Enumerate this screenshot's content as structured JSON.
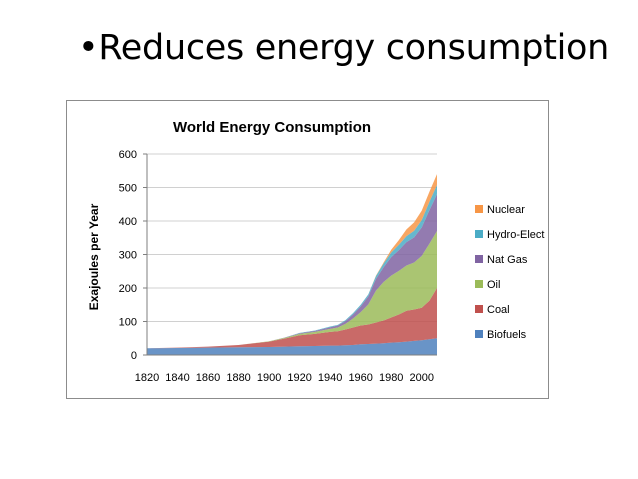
{
  "slide": {
    "title": "•Reduces energy consumption"
  },
  "chart_data": {
    "type": "area",
    "stacked": true,
    "title": "World Energy Consumption",
    "xlabel": "",
    "ylabel": "Exajoules per Year",
    "xlim": [
      1820,
      2010
    ],
    "ylim": [
      0,
      600
    ],
    "yticks": [
      0,
      100,
      200,
      300,
      400,
      500,
      600
    ],
    "xticks": [
      1820,
      1840,
      1860,
      1880,
      1900,
      1920,
      1940,
      1960,
      1980,
      2000
    ],
    "grid": "horizontal",
    "legend_position": "right",
    "x": [
      1820,
      1840,
      1860,
      1880,
      1900,
      1910,
      1920,
      1930,
      1940,
      1945,
      1950,
      1955,
      1960,
      1965,
      1970,
      1975,
      1980,
      1985,
      1990,
      1995,
      2000,
      2005,
      2010
    ],
    "series": [
      {
        "name": "Biofuels",
        "color": "#4f81bd",
        "values": [
          20,
          21,
          22,
          23,
          24,
          25,
          26,
          27,
          28,
          28,
          29,
          30,
          32,
          33,
          34,
          35,
          37,
          38,
          40,
          42,
          44,
          47,
          50
        ]
      },
      {
        "name": "Coal",
        "color": "#c0504d",
        "values": [
          0,
          1,
          3,
          7,
          16,
          24,
          33,
          36,
          41,
          43,
          47,
          52,
          56,
          58,
          63,
          68,
          75,
          83,
          92,
          94,
          97,
          115,
          150
        ]
      },
      {
        "name": "Oil",
        "color": "#9bbb59",
        "values": [
          0,
          0,
          0,
          0,
          1,
          2,
          4,
          6,
          9,
          11,
          17,
          27,
          40,
          60,
          95,
          115,
          125,
          130,
          135,
          140,
          155,
          170,
          170
        ]
      },
      {
        "name": "Nat Gas",
        "color": "#8064a2",
        "values": [
          0,
          0,
          0,
          0,
          0,
          1,
          2,
          3,
          5,
          6,
          8,
          12,
          17,
          24,
          35,
          44,
          55,
          62,
          70,
          75,
          85,
          100,
          110
        ]
      },
      {
        "name": "Hydro-Elect",
        "color": "#4bacc6",
        "values": [
          0,
          0,
          0,
          0,
          0,
          0,
          1,
          1,
          2,
          2,
          3,
          4,
          5,
          6,
          9,
          11,
          14,
          16,
          18,
          20,
          22,
          25,
          28
        ]
      },
      {
        "name": "Nuclear",
        "color": "#f79646",
        "values": [
          0,
          0,
          0,
          0,
          0,
          0,
          0,
          0,
          0,
          0,
          0,
          0,
          0,
          0,
          1,
          3,
          8,
          14,
          20,
          25,
          28,
          30,
          32
        ]
      }
    ]
  }
}
